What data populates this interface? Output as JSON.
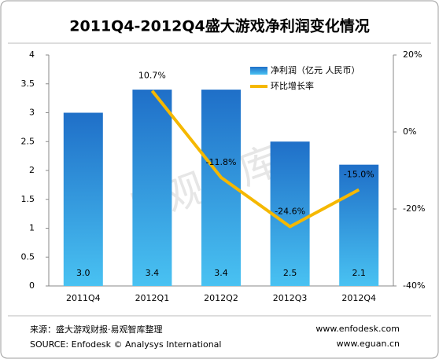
{
  "chart_data": {
    "type": "bar_line",
    "title": "2011Q4-2012Q4盛大游戏净利润变化情况",
    "categories": [
      "2011Q4",
      "2012Q1",
      "2012Q2",
      "2012Q3",
      "2012Q4"
    ],
    "series": [
      {
        "name": "净利润（亿元 人民币）",
        "color": "#2f8fd8",
        "values": [
          3.0,
          3.4,
          3.4,
          2.5,
          2.1
        ],
        "value_labels": [
          "3.0",
          "3.4",
          "3.4",
          "2.5",
          "2.1"
        ]
      },
      {
        "name": "环比增长率",
        "color": "#f5b800",
        "axis": "y2",
        "values": [
          null,
          10.7,
          -11.8,
          -24.6,
          -15.0
        ],
        "value_labels": [
          null,
          "10.7%",
          "-11.8%",
          "-24.6%",
          "-15.0%"
        ]
      }
    ],
    "ylim": [
      0,
      4
    ],
    "yticks": [
      0,
      0.5,
      1,
      1.5,
      2,
      2.5,
      3,
      3.5,
      4
    ],
    "y2lim": [
      -40,
      20
    ],
    "y2ticks": [
      {
        "value": -40,
        "label": "-40%"
      },
      {
        "value": -20,
        "label": "-20%"
      },
      {
        "value": 0,
        "label": "0%"
      },
      {
        "value": 20,
        "label": "20%"
      }
    ],
    "legend": "top-right",
    "watermark": "易观智库",
    "source": "来源：盛大游戏财报·易观智库整理",
    "source_en": "SOURCE: Enfodesk © Analysys International",
    "site1": "www.enfodesk.com",
    "site2": "www.eguan.cn"
  }
}
